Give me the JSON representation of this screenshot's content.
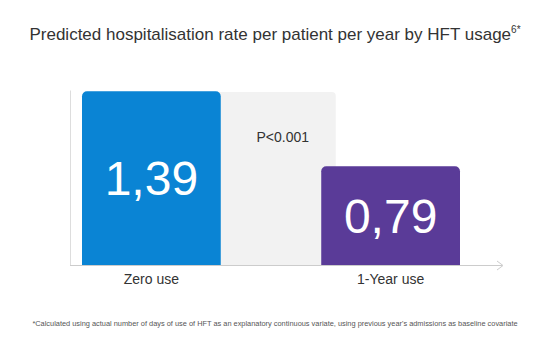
{
  "chart_data": {
    "type": "bar",
    "title": "Predicted hospitalisation rate per patient per year by HFT usage",
    "title_superscript": "6*",
    "annotation": "P<0.001",
    "footnote": "*Calculated using actual number of days of use of HFT as an explanatory continuous variate, using previous year's admissions as baseline covariate",
    "categories": [
      "Zero use",
      "1-Year use"
    ],
    "values": [
      1.39,
      0.79
    ],
    "value_labels": [
      "1,39",
      "0,79"
    ],
    "colors": [
      "#0a84d4",
      "#5a3b98"
    ],
    "ylim": [
      0,
      1.4
    ],
    "data_labels": true,
    "tick_labels": "x",
    "grid": false
  }
}
